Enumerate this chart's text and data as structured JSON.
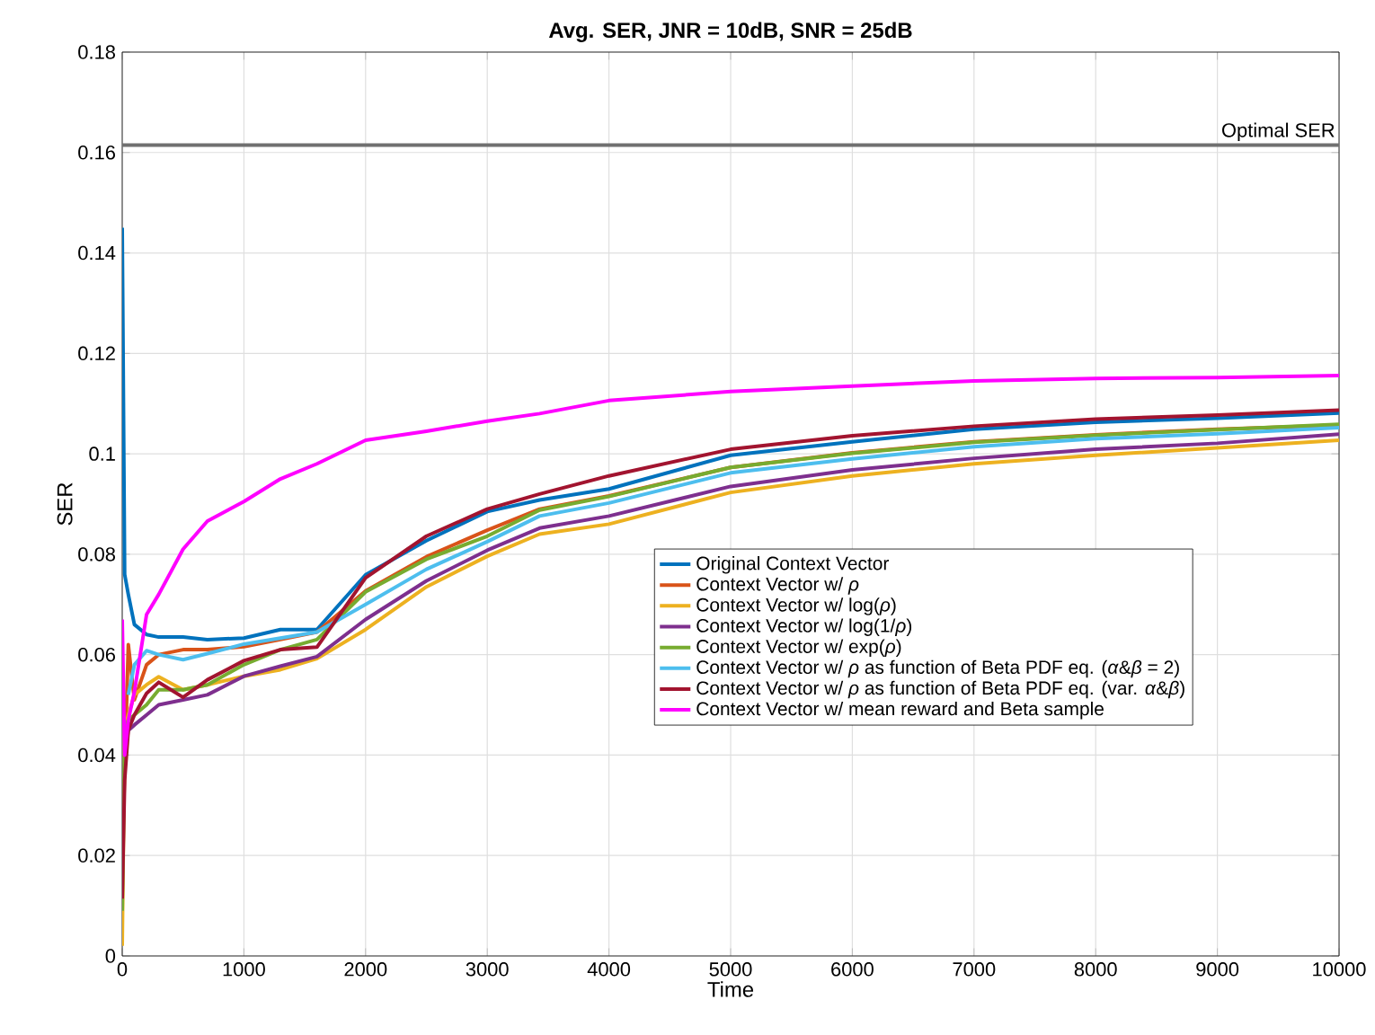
{
  "chart_data": {
    "type": "line",
    "title": "**Avg. SER, JNR = 10dB, SNR = 25dB**",
    "xlabel": "Time",
    "ylabel": "SER",
    "x": [
      0,
      20,
      50,
      100,
      200,
      300,
      500,
      700,
      1000,
      1300,
      1600,
      2000,
      2500,
      3000,
      3430,
      4000,
      5000,
      6000,
      7000,
      8000,
      9000,
      10000
    ],
    "series": [
      {
        "name": "Original Context Vector",
        "color": "#0072bd",
        "values": [
          0.145,
          0.076,
          0.072,
          0.066,
          0.064,
          0.0635,
          0.0635,
          0.063,
          0.0633,
          0.065,
          0.065,
          0.0759,
          0.0827,
          0.0885,
          0.0908,
          0.093,
          0.0997,
          0.1024,
          0.1049,
          0.1063,
          0.1071,
          0.1081
        ]
      },
      {
        "name": "Context Vector w/ *ρ*",
        "color": "#d95319",
        "values": [
          0.02,
          null,
          0.062,
          0.051,
          0.058,
          0.06,
          0.061,
          0.061,
          0.0616,
          0.063,
          0.0645,
          0.0727,
          0.0795,
          0.0848,
          0.089,
          0.0916,
          0.0973,
          0.1002,
          0.1024,
          0.1038,
          0.1049,
          0.1057
        ]
      },
      {
        "name": "Context Vector w/ log(*ρ*)",
        "color": "#edb120",
        "values": [
          0.002,
          0.045,
          0.048,
          0.052,
          0.054,
          0.0556,
          0.053,
          0.054,
          0.0557,
          0.057,
          0.0592,
          0.065,
          0.0735,
          0.0796,
          0.084,
          0.086,
          0.0923,
          0.0956,
          0.098,
          0.0997,
          0.1012,
          0.1027
        ]
      },
      {
        "name": "Context Vector w/ log(1/*ρ*)",
        "color": "#7e2f8e",
        "values": [
          0.03,
          0.04,
          0.0449,
          0.046,
          0.048,
          0.05,
          0.051,
          0.052,
          0.0557,
          0.0577,
          0.0596,
          0.067,
          0.0747,
          0.0808,
          0.0852,
          0.0876,
          0.0935,
          0.0968,
          0.0991,
          0.1009,
          0.1021,
          0.1039
        ]
      },
      {
        "name": "Context Vector w/ exp(*ρ*)",
        "color": "#77ac30",
        "values": [
          0.009,
          0.045,
          0.047,
          0.048,
          0.05,
          0.053,
          0.053,
          0.054,
          0.058,
          0.061,
          0.063,
          0.0725,
          0.079,
          0.0836,
          0.0888,
          0.0915,
          0.0973,
          0.1001,
          0.1023,
          0.1037,
          0.1048,
          0.1059
        ]
      },
      {
        "name": "Context Vector w/ *ρ* as function of Beta PDF eq. (*α*&*β* = 2)",
        "color": "#4dbeee",
        "values": [
          null,
          null,
          0.052,
          0.058,
          0.0608,
          0.06,
          0.059,
          0.0602,
          0.0621,
          0.0633,
          0.0645,
          0.07,
          0.077,
          0.0825,
          0.0876,
          0.0902,
          0.0962,
          0.099,
          0.1014,
          0.103,
          0.104,
          0.1052
        ]
      },
      {
        "name": "Context Vector w/ *ρ* as function of Beta PDF eq. (var. *α*&*β*)",
        "color": "#a2142f",
        "values": [
          0.0114,
          0.035,
          0.045,
          0.048,
          0.0523,
          0.0545,
          0.0515,
          0.055,
          0.0588,
          0.061,
          0.0615,
          0.0753,
          0.0836,
          0.089,
          0.092,
          0.0956,
          0.1009,
          0.1036,
          0.1055,
          0.1069,
          0.1077,
          0.1087
        ]
      },
      {
        "name": "Context Vector w/ mean reward and Beta sample",
        "color": "#ff00ff",
        "values": [
          0.067,
          0.04,
          0.047,
          0.0526,
          0.068,
          0.072,
          0.081,
          0.0866,
          0.0905,
          0.095,
          0.098,
          0.1027,
          0.1045,
          0.1065,
          0.108,
          0.1106,
          0.1124,
          0.1135,
          0.1145,
          0.115,
          0.1152,
          0.1156
        ]
      }
    ],
    "xlim": [
      0,
      10000
    ],
    "ylim": [
      0,
      0.18
    ],
    "xticks": [
      0,
      1000,
      2000,
      3000,
      4000,
      5000,
      6000,
      7000,
      8000,
      9000,
      10000
    ],
    "yticks": [
      0,
      0.02,
      0.04,
      0.06,
      0.08,
      0.1,
      0.12,
      0.14,
      0.16,
      0.18
    ],
    "ref_lines": [
      {
        "axis": "y",
        "value": 0.1615,
        "label": "Optimal SER",
        "color": "#707070"
      }
    ],
    "grid": true,
    "legend": "bottom right",
    "marker": "none",
    "line_style": "solid"
  }
}
